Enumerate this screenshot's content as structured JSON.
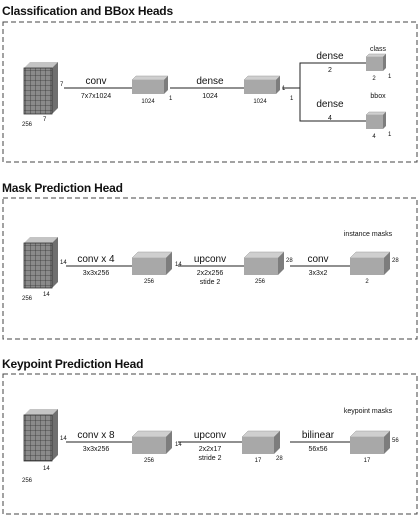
{
  "sections": [
    {
      "title": "Classification and BBox Heads",
      "input": {
        "depth_label": "7",
        "height_label": "7",
        "width_label": "256"
      },
      "ops": [
        {
          "name": "conv",
          "param": "7x7x1024"
        },
        {
          "name": "dense",
          "param": "1024"
        }
      ],
      "blocks": [
        {
          "label": "1024",
          "side": "1"
        },
        {
          "label": "1024",
          "side": "1"
        }
      ],
      "split_label": "1",
      "branches": [
        {
          "op": "dense",
          "param": "2",
          "out_title": "class",
          "out_label": "2",
          "out_side": "1"
        },
        {
          "op": "dense",
          "param": "4",
          "out_title": "bbox",
          "out_label": "4",
          "out_side": "1"
        }
      ]
    },
    {
      "title": "Mask Prediction Head",
      "input": {
        "depth_label": "14",
        "height_label": "14",
        "width_label": "256"
      },
      "ops": [
        {
          "name": "conv x 4",
          "param": "3x3x256"
        },
        {
          "name": "upconv",
          "param": "2x2x256",
          "param2": "stide 2"
        },
        {
          "name": "conv",
          "param": "3x3x2"
        }
      ],
      "blocks": [
        {
          "label": "256",
          "side": "14"
        },
        {
          "label": "256",
          "side": "28"
        },
        {
          "label": "2",
          "side": "28",
          "title": "instance masks"
        }
      ]
    },
    {
      "title": "Keypoint Prediction Head",
      "input": {
        "depth_label": "14",
        "height_label": "14",
        "width_label": "256"
      },
      "ops": [
        {
          "name": "conv x 8",
          "param": "3x3x256"
        },
        {
          "name": "upconv",
          "param": "2x2x17",
          "param2": "stride 2"
        },
        {
          "name": "bilinear",
          "param": "56x56"
        }
      ],
      "blocks": [
        {
          "label": "256",
          "side": "14"
        },
        {
          "label": "17",
          "side": "28"
        },
        {
          "label": "17",
          "side": "56",
          "title": "keypoint masks"
        }
      ]
    }
  ]
}
